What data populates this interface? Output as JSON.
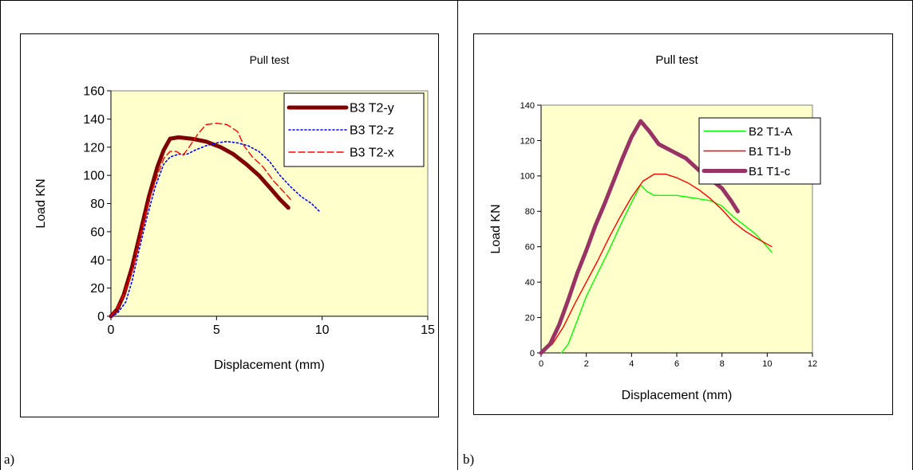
{
  "panels": {
    "a_tag": "a)",
    "b_tag": "b)"
  },
  "colors": {
    "plot_background": "#ffffcc",
    "series_a": [
      "#800000",
      "#0000ff",
      "#ff0000"
    ],
    "series_b": [
      "#00ff00",
      "#ff0000",
      "#993366"
    ]
  },
  "chart_data": [
    {
      "type": "line",
      "title": "Pull test",
      "xlabel": "Displacement (mm)",
      "ylabel": "Load KN",
      "xlim": [
        0,
        15
      ],
      "ylim": [
        0,
        160
      ],
      "xticks": [
        0,
        5,
        10,
        15
      ],
      "yticks": [
        0,
        20,
        40,
        60,
        80,
        100,
        120,
        140,
        160
      ],
      "grid": false,
      "legend": "top-right",
      "series": [
        {
          "name": "B3 T2-y",
          "style": "thick-solid",
          "points": [
            [
              0,
              0
            ],
            [
              0.3,
              5
            ],
            [
              0.6,
              15
            ],
            [
              1.0,
              35
            ],
            [
              1.4,
              60
            ],
            [
              1.8,
              85
            ],
            [
              2.2,
              106
            ],
            [
              2.5,
              118
            ],
            [
              2.8,
              126
            ],
            [
              3.2,
              127
            ],
            [
              3.8,
              126
            ],
            [
              4.5,
              124
            ],
            [
              5.2,
              120
            ],
            [
              5.8,
              115
            ],
            [
              6.4,
              108
            ],
            [
              7.0,
              100
            ],
            [
              7.6,
              90
            ],
            [
              8.0,
              83
            ],
            [
              8.4,
              77
            ]
          ]
        },
        {
          "name": "B3 T2-z",
          "style": "dotted",
          "points": [
            [
              0,
              0
            ],
            [
              0.3,
              2
            ],
            [
              0.7,
              10
            ],
            [
              1.0,
              25
            ],
            [
              1.3,
              45
            ],
            [
              1.7,
              70
            ],
            [
              2.1,
              92
            ],
            [
              2.5,
              108
            ],
            [
              2.8,
              113
            ],
            [
              3.2,
              115
            ],
            [
              3.6,
              115
            ],
            [
              4.0,
              118
            ],
            [
              4.5,
              121
            ],
            [
              5.0,
              123
            ],
            [
              5.5,
              124
            ],
            [
              6.0,
              123
            ],
            [
              6.5,
              121
            ],
            [
              7.0,
              117
            ],
            [
              7.5,
              110
            ],
            [
              8.0,
              100
            ],
            [
              8.5,
              92
            ],
            [
              9.0,
              85
            ],
            [
              9.5,
              80
            ],
            [
              9.9,
              74
            ]
          ]
        },
        {
          "name": "B3 T2-x",
          "style": "dashed",
          "points": [
            [
              0,
              0
            ],
            [
              0.3,
              6
            ],
            [
              0.6,
              15
            ],
            [
              1.0,
              32
            ],
            [
              1.4,
              58
            ],
            [
              1.8,
              82
            ],
            [
              2.2,
              100
            ],
            [
              2.5,
              112
            ],
            [
              2.8,
              117
            ],
            [
              3.1,
              117
            ],
            [
              3.4,
              114
            ],
            [
              3.7,
              120
            ],
            [
              4.1,
              129
            ],
            [
              4.5,
              136
            ],
            [
              5.0,
              137
            ],
            [
              5.5,
              136
            ],
            [
              6.0,
              131
            ],
            [
              6.3,
              121
            ],
            [
              6.7,
              113
            ],
            [
              7.2,
              106
            ],
            [
              7.7,
              96
            ],
            [
              8.2,
              88
            ],
            [
              8.5,
              83
            ]
          ]
        }
      ]
    },
    {
      "type": "line",
      "title": "Pull test",
      "xlabel": "Displacement (mm)",
      "ylabel": "Load KN",
      "xlim": [
        0,
        12
      ],
      "ylim": [
        0,
        140
      ],
      "xticks": [
        0,
        2,
        4,
        6,
        8,
        10,
        12
      ],
      "yticks": [
        0,
        20,
        40,
        60,
        80,
        100,
        120,
        140
      ],
      "grid": false,
      "legend": "top-right",
      "series": [
        {
          "name": "B2 T1-A",
          "style": "thin-solid",
          "points": [
            [
              0.9,
              0
            ],
            [
              1.2,
              5
            ],
            [
              1.5,
              15
            ],
            [
              2.0,
              32
            ],
            [
              2.5,
              45
            ],
            [
              3.0,
              58
            ],
            [
              3.5,
              72
            ],
            [
              4.0,
              85
            ],
            [
              4.4,
              95
            ],
            [
              4.7,
              91
            ],
            [
              5.0,
              89
            ],
            [
              5.5,
              89
            ],
            [
              6.0,
              89
            ],
            [
              6.5,
              88
            ],
            [
              7.0,
              87
            ],
            [
              7.5,
              86
            ],
            [
              8.0,
              83
            ],
            [
              8.5,
              77
            ],
            [
              9.0,
              72
            ],
            [
              9.5,
              67
            ],
            [
              10.2,
              57
            ]
          ]
        },
        {
          "name": "B1 T1-b",
          "style": "thin-solid",
          "points": [
            [
              0,
              0
            ],
            [
              0.5,
              5
            ],
            [
              1.0,
              15
            ],
            [
              1.5,
              28
            ],
            [
              2.0,
              40
            ],
            [
              2.5,
              52
            ],
            [
              3.0,
              65
            ],
            [
              3.5,
              77
            ],
            [
              4.0,
              88
            ],
            [
              4.5,
              97
            ],
            [
              5.0,
              101
            ],
            [
              5.5,
              101
            ],
            [
              6.0,
              99
            ],
            [
              6.5,
              96
            ],
            [
              7.0,
              92
            ],
            [
              7.5,
              87
            ],
            [
              8.0,
              81
            ],
            [
              8.5,
              74
            ],
            [
              9.0,
              69
            ],
            [
              9.5,
              65
            ],
            [
              10.2,
              60
            ]
          ]
        },
        {
          "name": "B1 T1-c",
          "style": "thick-solid",
          "points": [
            [
              0,
              0
            ],
            [
              0.4,
              5
            ],
            [
              0.8,
              16
            ],
            [
              1.2,
              30
            ],
            [
              1.6,
              45
            ],
            [
              2.0,
              58
            ],
            [
              2.4,
              72
            ],
            [
              2.8,
              84
            ],
            [
              3.2,
              97
            ],
            [
              3.6,
              110
            ],
            [
              4.0,
              122
            ],
            [
              4.4,
              131
            ],
            [
              4.8,
              125
            ],
            [
              5.2,
              118
            ],
            [
              5.8,
              114
            ],
            [
              6.4,
              110
            ],
            [
              7.0,
              103
            ],
            [
              7.5,
              98
            ],
            [
              8.0,
              93
            ],
            [
              8.4,
              86
            ],
            [
              8.7,
              80
            ]
          ]
        }
      ]
    }
  ]
}
